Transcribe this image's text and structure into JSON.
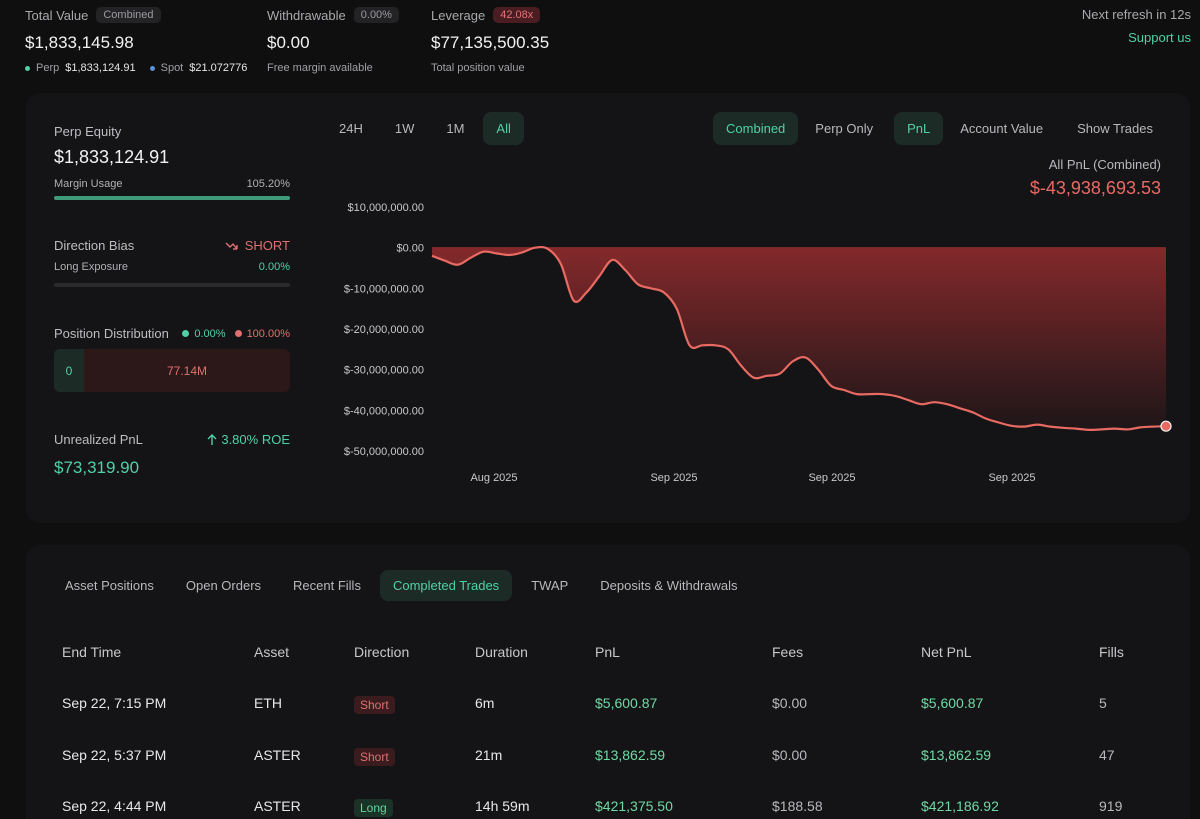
{
  "header": {
    "total_value": {
      "label": "Total Value",
      "pill": "Combined",
      "value": "$1,833,145.98",
      "perp_label": "Perp",
      "perp_value": "$1,833,124.91",
      "spot_label": "Spot",
      "spot_value": "$21.072776"
    },
    "withdrawable": {
      "label": "Withdrawable",
      "pill": "0.00%",
      "value": "$0.00",
      "sub": "Free margin available"
    },
    "leverage": {
      "label": "Leverage",
      "pill": "42.08x",
      "value": "$77,135,500.35",
      "sub": "Total position value"
    },
    "refresh": "Next refresh in 12s",
    "support": "Support us"
  },
  "summary": {
    "perp_equity_label": "Perp Equity",
    "perp_equity_value": "$1,833,124.91",
    "margin_usage_label": "Margin Usage",
    "margin_usage_value": "105.20%",
    "margin_usage_fraction": 1.0,
    "direction_bias_label": "Direction Bias",
    "direction_bias_value": "SHORT",
    "long_exposure_label": "Long Exposure",
    "long_exposure_value": "0.00%",
    "position_distribution_label": "Position Distribution",
    "dist_long_pct": "0.00%",
    "dist_short_pct": "100.00%",
    "dist_long_value": "0",
    "dist_short_value": "77.14M",
    "unrealized_pnl_label": "Unrealized PnL",
    "roe": "3.80% ROE",
    "unrealized_pnl_value": "$73,319.90"
  },
  "chart_controls": {
    "timeframes": [
      "24H",
      "1W",
      "1M",
      "All"
    ],
    "active_timeframe": "All",
    "scope": [
      "Combined",
      "Perp Only"
    ],
    "active_scope": "Combined",
    "metric": [
      "PnL",
      "Account Value"
    ],
    "active_metric": "PnL",
    "show_trades": "Show Trades",
    "total_label": "All PnL (Combined)",
    "total_value": "$-43,938,693.53"
  },
  "chart_data": {
    "type": "area",
    "y_ticks": [
      "$10,000,000.00",
      "$0.00",
      "$-10,000,000.00",
      "$-20,000,000.00",
      "$-30,000,000.00",
      "$-40,000,000.00",
      "$-50,000,000.00"
    ],
    "x_ticks": [
      "Aug 2025",
      "Sep 2025",
      "Sep 2025",
      "Sep 2025"
    ],
    "ylim": [
      -50000000,
      10000000
    ],
    "series": [
      {
        "values": [
          -2000000,
          -3200000,
          -4200000,
          -2500000,
          -1000000,
          -1400000,
          -1800000,
          -1200000,
          0,
          -300000,
          -4000000,
          -13000000,
          -11000000,
          -7000000,
          -3000000,
          -5500000,
          -9000000,
          -10000000,
          -11000000,
          -15000000,
          -24000000,
          -24000000,
          -24000000,
          -25000000,
          -29000000,
          -32000000,
          -31500000,
          -31000000,
          -28000000,
          -27000000,
          -30000000,
          -34000000,
          -35000000,
          -36000000,
          -36000000,
          -36000000,
          -36500000,
          -37500000,
          -38500000,
          -38000000,
          -38500000,
          -39500000,
          -40500000,
          -42000000,
          -43000000,
          -43800000,
          -44000000,
          -43500000,
          -44000000,
          -44300000,
          -44500000,
          -44800000,
          -44700000,
          -44500000,
          -44700000,
          -44200000,
          -44000000,
          -43900000
        ]
      }
    ],
    "colors": {
      "line": "#e86a62",
      "fill": "#8a2a2c"
    }
  },
  "tabs": [
    "Asset Positions",
    "Open Orders",
    "Recent Fills",
    "Completed Trades",
    "TWAP",
    "Deposits & Withdrawals"
  ],
  "active_tab": "Completed Trades",
  "table": {
    "columns": [
      "End Time",
      "Asset",
      "Direction",
      "Duration",
      "PnL",
      "Fees",
      "Net PnL",
      "Fills"
    ],
    "rows": [
      {
        "end_time": "Sep 22, 7:15 PM",
        "asset": "ETH",
        "direction": "Short",
        "duration": "6m",
        "pnl": "$5,600.87",
        "fees": "$0.00",
        "net_pnl": "$5,600.87",
        "fills": "5"
      },
      {
        "end_time": "Sep 22, 5:37 PM",
        "asset": "ASTER",
        "direction": "Short",
        "duration": "21m",
        "pnl": "$13,862.59",
        "fees": "$0.00",
        "net_pnl": "$13,862.59",
        "fills": "47"
      },
      {
        "end_time": "Sep 22, 4:44 PM",
        "asset": "ASTER",
        "direction": "Long",
        "duration": "14h 59m",
        "pnl": "$421,375.50",
        "fees": "$188.58",
        "net_pnl": "$421,186.92",
        "fills": "919"
      }
    ]
  },
  "colors": {
    "accent_green": "#4fd1a5",
    "accent_red": "#e86a62",
    "background": "#0f0f10",
    "card": "#141416"
  }
}
